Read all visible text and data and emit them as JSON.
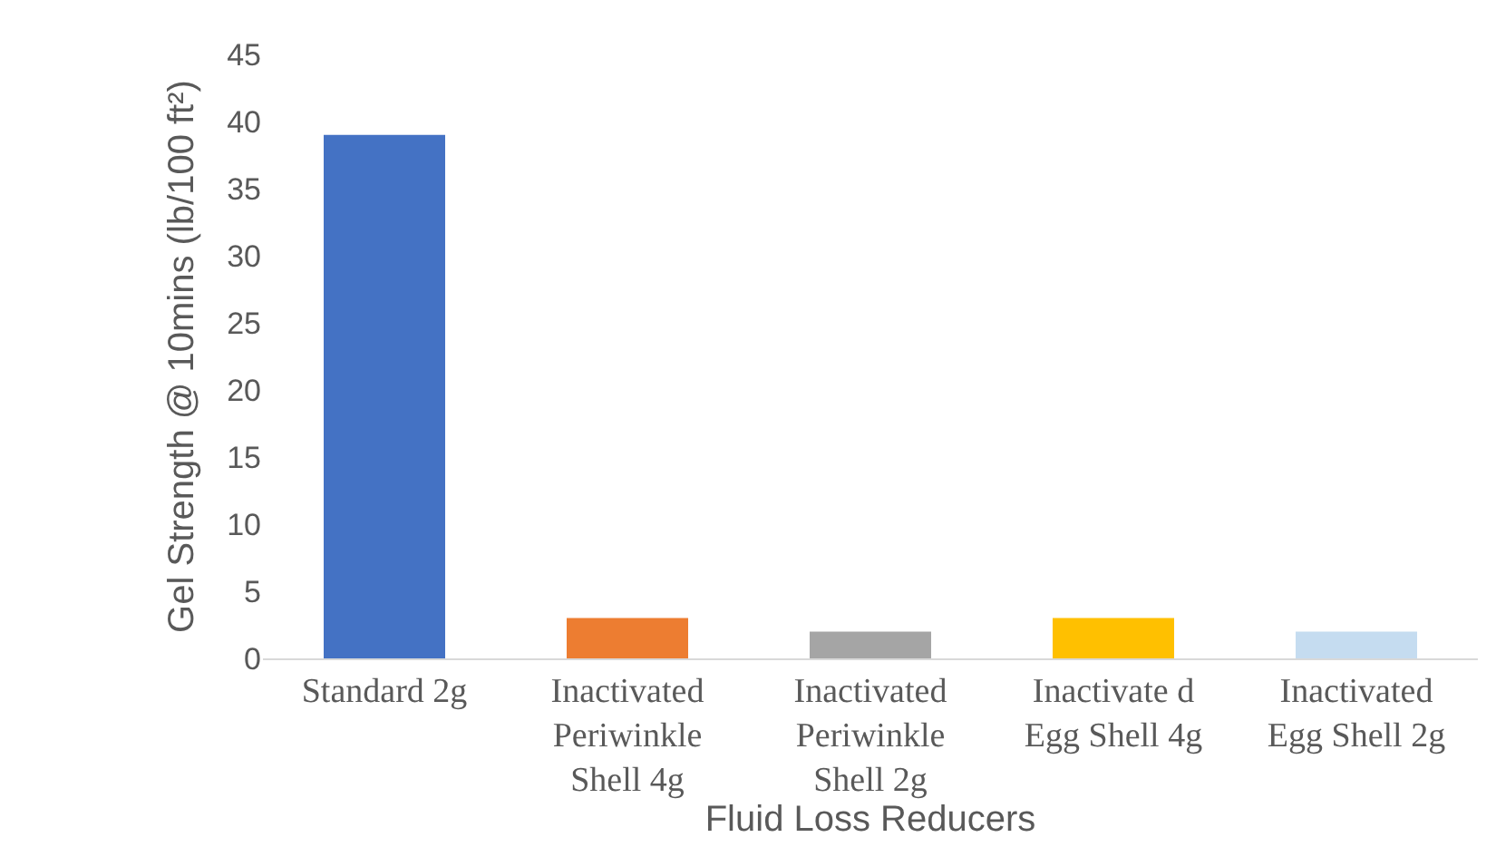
{
  "chart_data": {
    "type": "bar",
    "xlabel": "Fluid Loss Reducers",
    "ylabel": "Gel Strength @ 10mins (lb/100 ft²)",
    "categories": [
      "Standard 2g",
      "Inactivated Periwinkle Shell 4g",
      "Inactivated Periwinkle Shell 2g",
      "Inactivate d Egg Shell 4g",
      "Inactivated Egg Shell 2g"
    ],
    "values": [
      39,
      3,
      2,
      3,
      2
    ],
    "colors": [
      "#4472c4",
      "#ed7d31",
      "#a5a5a5",
      "#ffc000",
      "#c5dcf0"
    ],
    "ylim": [
      0,
      45
    ],
    "yticks": [
      0,
      5,
      10,
      15,
      20,
      25,
      30,
      35,
      40,
      45
    ],
    "grid": false
  }
}
